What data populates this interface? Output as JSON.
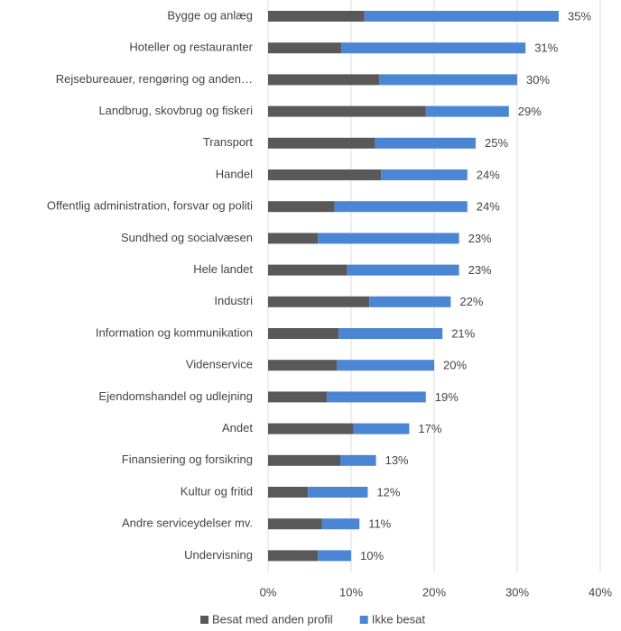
{
  "chart_data": {
    "type": "stacked_barh",
    "categories": [
      "Bygge og anlæg",
      "Hoteller og restauranter",
      "Rejsebureauer, rengøring og anden…",
      "Landbrug, skovbrug og fiskeri",
      "Transport",
      "Handel",
      "Offentlig administration, forsvar og politi",
      "Sundhed og socialvæsen",
      "Hele landet",
      "Industri",
      "Information og kommunikation",
      "Videnservice",
      "Ejendomshandel og udlejning",
      "Andet",
      "Finansiering og forsikring",
      "Kultur og fritid",
      "Andre serviceydelser mv.",
      "Undervisning"
    ],
    "series": [
      {
        "name": "Besat med anden profil",
        "color": "#595959",
        "values": [
          11.6,
          8.8,
          13.4,
          19.0,
          12.9,
          13.6,
          8.0,
          6.0,
          9.5,
          12.2,
          8.5,
          8.3,
          7.1,
          10.3,
          8.7,
          4.8,
          6.5,
          6.0
        ]
      },
      {
        "name": "Ikke besat",
        "color": "#4a86d4",
        "values": [
          23.4,
          22.2,
          16.6,
          10.0,
          12.1,
          10.4,
          16.0,
          17.0,
          13.5,
          9.8,
          12.5,
          11.7,
          11.9,
          6.7,
          4.3,
          7.2,
          4.5,
          4.0
        ]
      }
    ],
    "totals": [
      35,
      31,
      30,
      29,
      25,
      24,
      24,
      23,
      23,
      22,
      21,
      20,
      19,
      17,
      13,
      12,
      11,
      10
    ],
    "total_labels": [
      "35%",
      "31%",
      "30%",
      "29%",
      "25%",
      "24%",
      "24%",
      "23%",
      "23%",
      "22%",
      "21%",
      "20%",
      "19%",
      "17%",
      "13%",
      "12%",
      "11%",
      "10%"
    ],
    "xlim": [
      0,
      40
    ],
    "xticks": [
      {
        "value": 0,
        "label": "0%"
      },
      {
        "value": 10,
        "label": "10%"
      },
      {
        "value": 20,
        "label": "20%"
      },
      {
        "value": 30,
        "label": "30%"
      },
      {
        "value": 40,
        "label": "40%"
      }
    ],
    "grid": true,
    "legend": "bottom"
  }
}
